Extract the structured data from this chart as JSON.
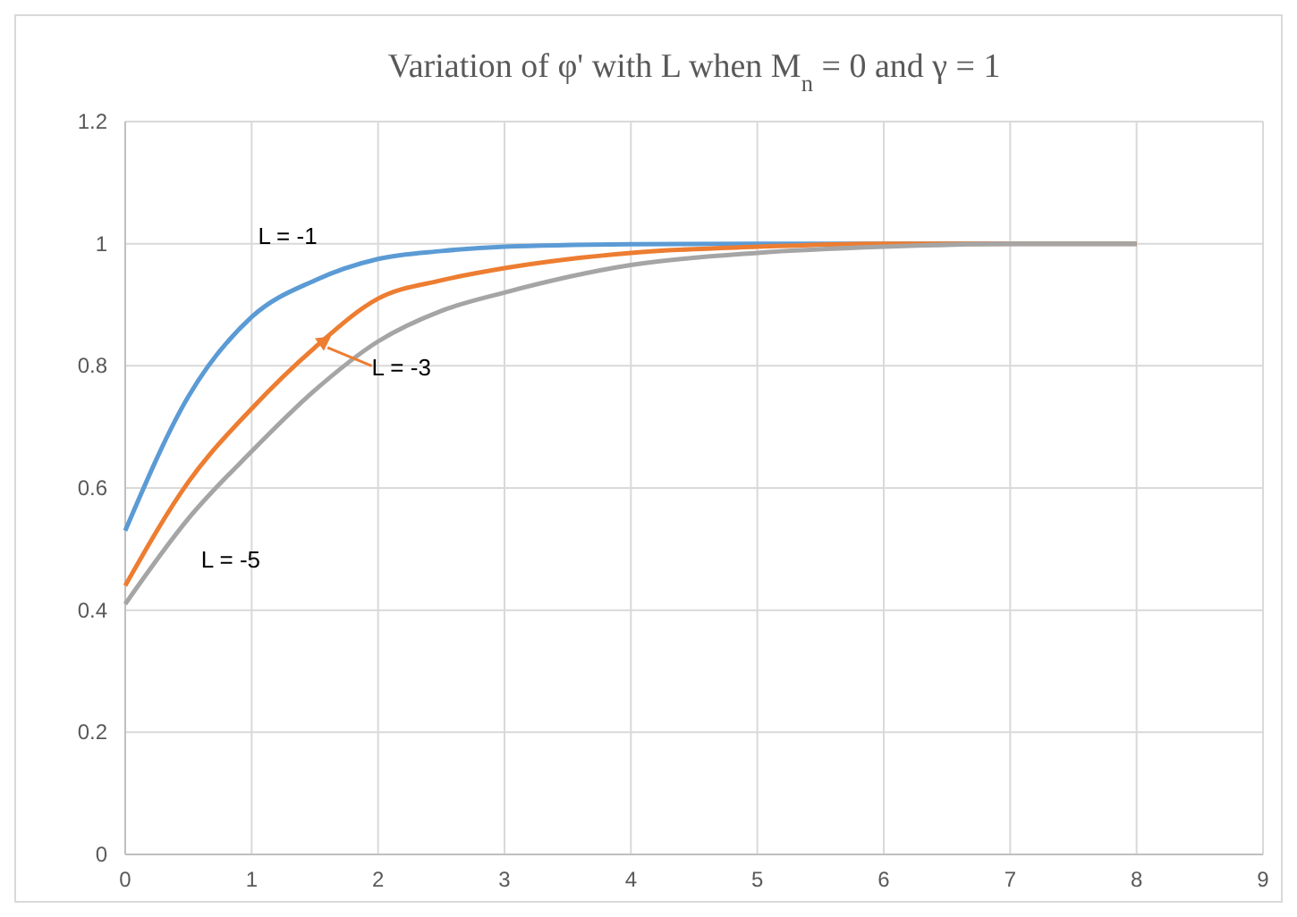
{
  "chart_data": {
    "type": "line",
    "title": "Variation of φ' with L when M$_{n}$ = 0 and γ = 1",
    "x": [
      0,
      0.5,
      1,
      1.5,
      2,
      2.5,
      3,
      4,
      5,
      6,
      7,
      8
    ],
    "series": [
      {
        "name": "L = -1",
        "color": "#5b9bd5",
        "values": [
          0.53,
          0.75,
          0.88,
          0.94,
          0.975,
          0.988,
          0.995,
          0.999,
          1,
          1,
          1,
          1
        ]
      },
      {
        "name": "L = -3",
        "color": "#ed7d31",
        "values": [
          0.44,
          0.61,
          0.73,
          0.83,
          0.91,
          0.94,
          0.96,
          0.985,
          0.995,
          1,
          1,
          1
        ]
      },
      {
        "name": "L = -5",
        "color": "#a5a5a5",
        "values": [
          0.41,
          0.55,
          0.66,
          0.76,
          0.84,
          0.89,
          0.92,
          0.965,
          0.985,
          0.995,
          1,
          1
        ]
      }
    ],
    "xlim": [
      0,
      9
    ],
    "xticks": [
      0,
      1,
      2,
      3,
      4,
      5,
      6,
      7,
      8,
      9
    ],
    "ylim": [
      0,
      1.2
    ],
    "yticks": [
      0,
      0.2,
      0.4,
      0.6,
      0.8,
      1,
      1.2
    ],
    "grid": true,
    "marker": "none",
    "line_style": "solid"
  }
}
